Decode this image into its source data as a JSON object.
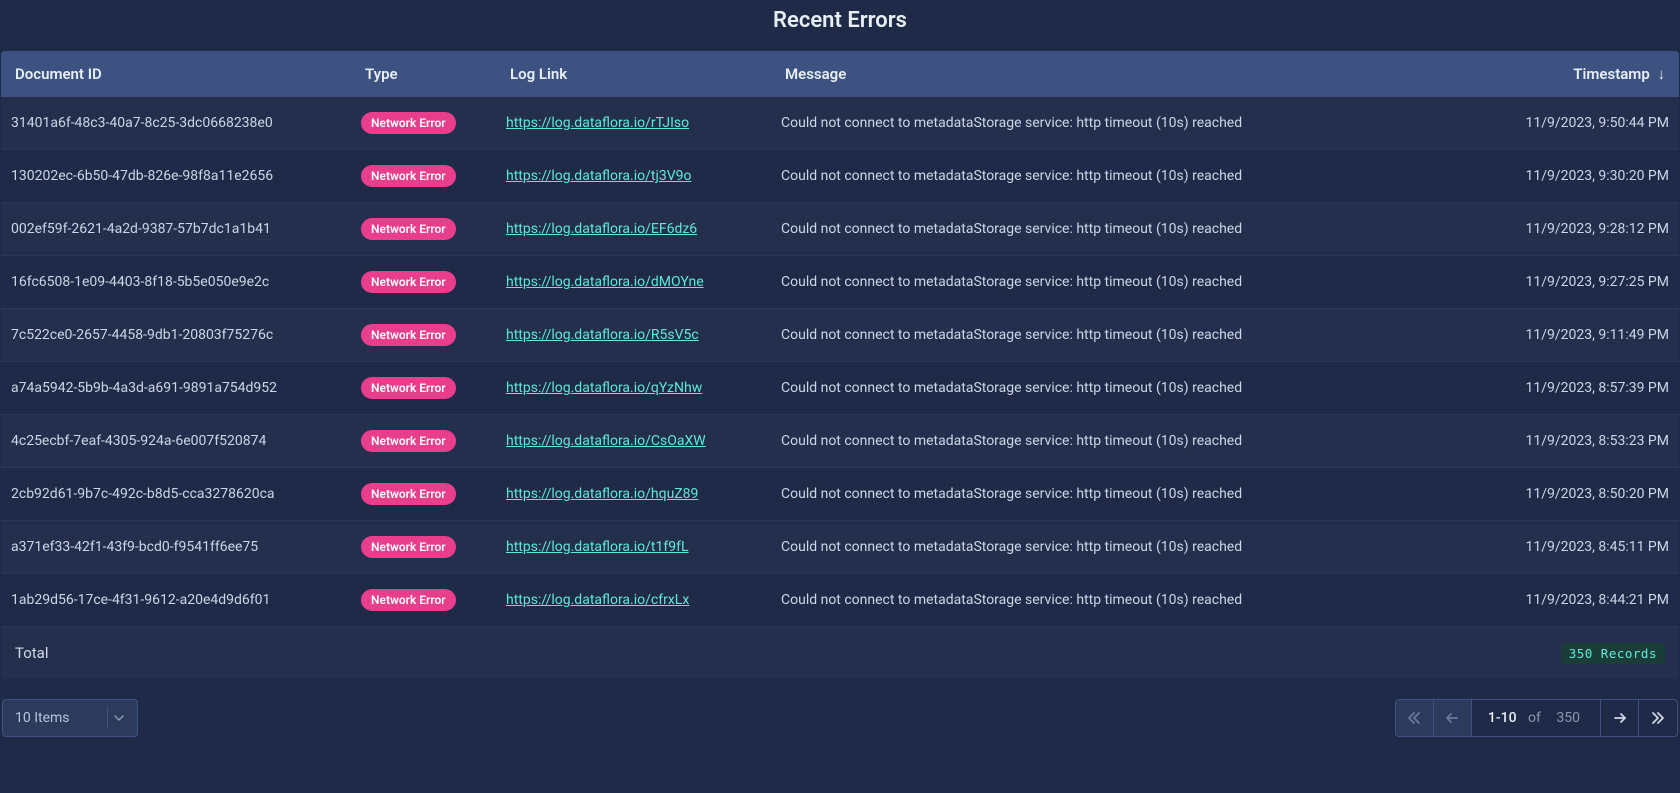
{
  "title": "Recent Errors",
  "colors": {
    "page_bg": "#1e2a47",
    "header_bg": "#3d5280",
    "row_odd_bg": "#232f4d",
    "row_even_bg": "#1e2a47",
    "row_border": "#2a3757",
    "text": "#d1d9e6",
    "text_strong": "#e8eef7",
    "badge_bg": "#e83e8c",
    "badge_text": "#ffffff",
    "link": "#5eead4",
    "records_bg": "#1a3d3a",
    "records_text": "#5eead4",
    "select_bg": "#2c3a5c",
    "border": "#3d5280",
    "muted": "#8a96b3",
    "disabled_text": "#6b7a9c"
  },
  "columns": [
    {
      "key": "document_id",
      "label": "Document ID"
    },
    {
      "key": "type",
      "label": "Type"
    },
    {
      "key": "log_link",
      "label": "Log Link"
    },
    {
      "key": "message",
      "label": "Message"
    },
    {
      "key": "timestamp",
      "label": "Timestamp",
      "sort": "desc"
    }
  ],
  "rows": [
    {
      "document_id": "31401a6f-48c3-40a7-8c25-3dc0668238e0",
      "type": "Network Error",
      "log_link": "https://log.dataflora.io/rTJIso",
      "message": "Could not connect to metadataStorage service: http timeout (10s) reached",
      "timestamp": "11/9/2023, 9:50:44 PM"
    },
    {
      "document_id": "130202ec-6b50-47db-826e-98f8a11e2656",
      "type": "Network Error",
      "log_link": "https://log.dataflora.io/tj3V9o",
      "message": "Could not connect to metadataStorage service: http timeout (10s) reached",
      "timestamp": "11/9/2023, 9:30:20 PM"
    },
    {
      "document_id": "002ef59f-2621-4a2d-9387-57b7dc1a1b41",
      "type": "Network Error",
      "log_link": "https://log.dataflora.io/EF6dz6",
      "message": "Could not connect to metadataStorage service: http timeout (10s) reached",
      "timestamp": "11/9/2023, 9:28:12 PM"
    },
    {
      "document_id": "16fc6508-1e09-4403-8f18-5b5e050e9e2c",
      "type": "Network Error",
      "log_link": "https://log.dataflora.io/dMOYne",
      "message": "Could not connect to metadataStorage service: http timeout (10s) reached",
      "timestamp": "11/9/2023, 9:27:25 PM"
    },
    {
      "document_id": "7c522ce0-2657-4458-9db1-20803f75276c",
      "type": "Network Error",
      "log_link": "https://log.dataflora.io/R5sV5c",
      "message": "Could not connect to metadataStorage service: http timeout (10s) reached",
      "timestamp": "11/9/2023, 9:11:49 PM"
    },
    {
      "document_id": "a74a5942-5b9b-4a3d-a691-9891a754d952",
      "type": "Network Error",
      "log_link": "https://log.dataflora.io/qYzNhw",
      "message": "Could not connect to metadataStorage service: http timeout (10s) reached",
      "timestamp": "11/9/2023, 8:57:39 PM"
    },
    {
      "document_id": "4c25ecbf-7eaf-4305-924a-6e007f520874",
      "type": "Network Error",
      "log_link": "https://log.dataflora.io/CsOaXW",
      "message": "Could not connect to metadataStorage service: http timeout (10s) reached",
      "timestamp": "11/9/2023, 8:53:23 PM"
    },
    {
      "document_id": "2cb92d61-9b7c-492c-b8d5-cca3278620ca",
      "type": "Network Error",
      "log_link": "https://log.dataflora.io/hquZ89",
      "message": "Could not connect to metadataStorage service: http timeout (10s) reached",
      "timestamp": "11/9/2023, 8:50:20 PM"
    },
    {
      "document_id": "a371ef33-42f1-43f9-bcd0-f9541ff6ee75",
      "type": "Network Error",
      "log_link": "https://log.dataflora.io/t1f9fL",
      "message": "Could not connect to metadataStorage service: http timeout (10s) reached",
      "timestamp": "11/9/2023, 8:45:11 PM"
    },
    {
      "document_id": "1ab29d56-17ce-4f31-9612-a20e4d9d6f01",
      "type": "Network Error",
      "log_link": "https://log.dataflora.io/cfrxLx",
      "message": "Could not connect to metadataStorage service: http timeout (10s) reached",
      "timestamp": "11/9/2023, 8:44:21 PM"
    }
  ],
  "footer": {
    "total_label": "Total",
    "records_badge": "350 Records"
  },
  "pager": {
    "page_size_label": "10 Items",
    "range": "1-10",
    "of_label": "of",
    "total": "350",
    "first_enabled": false,
    "prev_enabled": false,
    "next_enabled": true,
    "last_enabled": true
  }
}
